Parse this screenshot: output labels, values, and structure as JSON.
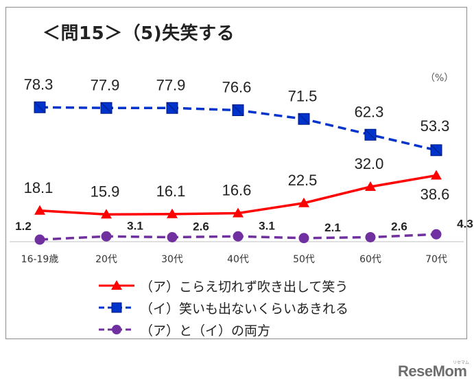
{
  "title": "＜問15＞（5)失笑する",
  "unit_label": "（%）",
  "logo": "ReseMom",
  "logo_sub": "リセマム",
  "chart_data": {
    "type": "line",
    "categories": [
      "16-19歳",
      "20代",
      "30代",
      "40代",
      "50代",
      "60代",
      "70代"
    ],
    "ylim": [
      0,
      100
    ],
    "grid": false,
    "legend_position": "bottom",
    "series": [
      {
        "name": "（ア）こらえ切れず吹き出して笑う",
        "values": [
          18.1,
          15.9,
          16.1,
          16.6,
          22.5,
          32.0,
          38.6
        ],
        "labels": [
          "18.1",
          "15.9",
          "16.1",
          "16.6",
          "22.5",
          "32.0",
          "38.6"
        ],
        "color": "#ff0000",
        "marker": "triangle",
        "dash": "solid"
      },
      {
        "name": "（イ）笑いも出ないくらいあきれる",
        "values": [
          78.3,
          77.9,
          77.9,
          76.6,
          71.5,
          62.3,
          53.3
        ],
        "labels": [
          "78.3",
          "77.9",
          "77.9",
          "76.6",
          "71.5",
          "62.3",
          "53.3"
        ],
        "color": "#0033cc",
        "marker": "square",
        "dash": "dashed"
      },
      {
        "name": "（ア）と（イ）の両方",
        "values": [
          1.2,
          3.1,
          2.6,
          3.1,
          2.1,
          2.6,
          4.3
        ],
        "labels": [
          "1.2",
          "3.1",
          "2.6",
          "3.1",
          "2.1",
          "2.6",
          "4.3"
        ],
        "color": "#7030a0",
        "marker": "circle",
        "dash": "dashed"
      }
    ]
  }
}
